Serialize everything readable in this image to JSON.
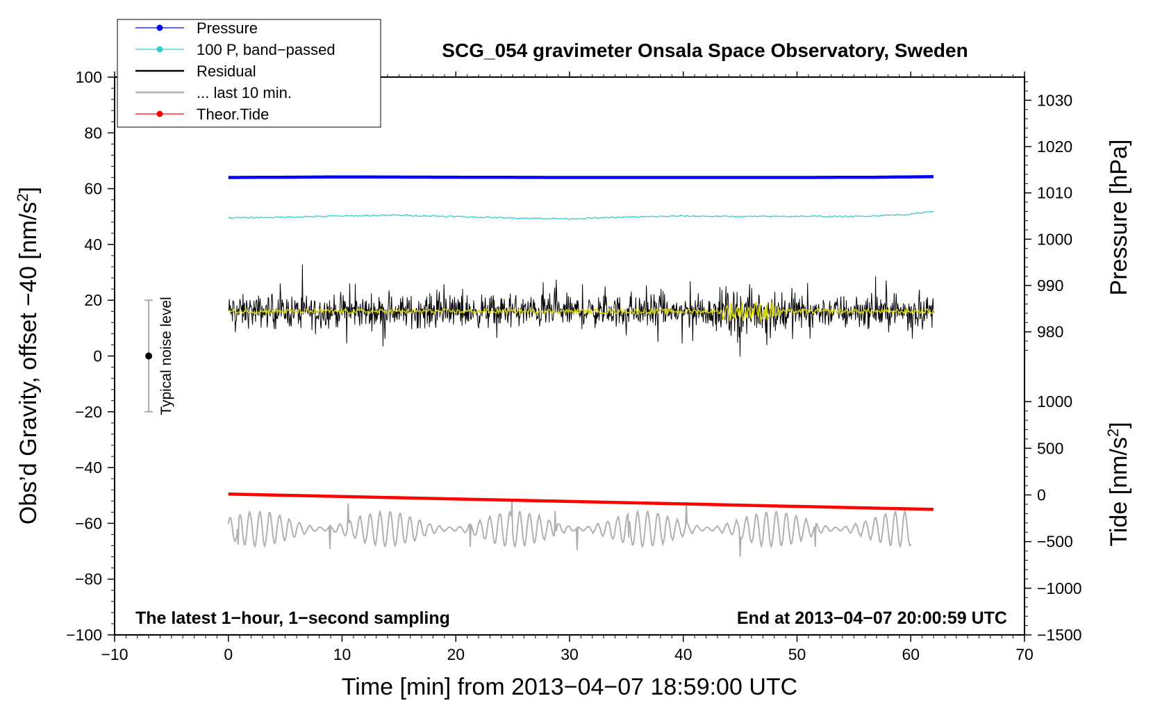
{
  "chart_data": {
    "type": "line",
    "title": "SCG_054 gravimeter Onsala Space Observatory, Sweden",
    "xlabel": "Time [min] from 2013−04−07 18:59:00 UTC",
    "ylabel_left_prefix": "Obs’d Gravity, offset −40 [nm/s",
    "ylabel_left_sup": "2",
    "ylabel_left_suffix": "]",
    "ylabel_pressure": "Pressure [hPa]",
    "ylabel_tide_prefix": "Tide [nm/s",
    "ylabel_tide_sup": "2",
    "ylabel_tide_suffix": "]",
    "xlim": [
      -10,
      70
    ],
    "ylim_left": [
      -100,
      100
    ],
    "ylim_pressure": [
      975,
      1035
    ],
    "ylim_tide": [
      -1500,
      1500
    ],
    "x_ticks": [
      -10,
      0,
      10,
      20,
      30,
      40,
      50,
      60,
      70
    ],
    "x_tick_labels": [
      "−10",
      "0",
      "10",
      "20",
      "30",
      "40",
      "50",
      "60",
      "70"
    ],
    "y_left_ticks": [
      100,
      80,
      60,
      40,
      20,
      0,
      -20,
      -40,
      -60,
      -80,
      -100
    ],
    "y_left_tick_labels": [
      "100",
      "80",
      "60",
      "40",
      "20",
      "0",
      "−20",
      "−40",
      "−60",
      "−80",
      "−100"
    ],
    "y_pressure_ticks": [
      1030,
      1020,
      1010,
      1000,
      990,
      980
    ],
    "y_pressure_tick_labels": [
      "1030",
      "1020",
      "1010",
      "1000",
      "990",
      "980"
    ],
    "y_tide_ticks": [
      1000,
      500,
      0,
      -500,
      -1000,
      -1500
    ],
    "y_tide_tick_labels": [
      "1000",
      "500",
      "0",
      "−500",
      "−1000",
      "−1500"
    ],
    "legend": {
      "placement": "top-left",
      "entries": [
        {
          "label": "Pressure",
          "color": "#0000ff",
          "marker": true
        },
        {
          "label": "100 P, band−passed",
          "color": "#33cccc",
          "marker": true
        },
        {
          "label": "Residual",
          "color": "#000000",
          "marker": false
        },
        {
          "label": "... last 10 min.",
          "color": "#b0b0b0",
          "marker": false
        },
        {
          "label": "Theor.Tide",
          "color": "#ff0000",
          "marker": true
        }
      ]
    },
    "series": [
      {
        "name": "Pressure",
        "color": "#0000ff",
        "axis": "left",
        "x": [
          0,
          10,
          20,
          30,
          40,
          50,
          57,
          62
        ],
        "y": [
          64,
          64.2,
          64.1,
          64,
          64,
          64,
          64.1,
          64.3
        ]
      },
      {
        "name": "100 P, band−passed",
        "color": "#33cccc",
        "axis": "left",
        "x": [
          0,
          5,
          10,
          15,
          20,
          25,
          30,
          35,
          40,
          45,
          50,
          55,
          60,
          62
        ],
        "y": [
          49.5,
          49.8,
          50.2,
          50.5,
          50,
          49.5,
          49.2,
          49.8,
          50.2,
          50,
          50.1,
          50,
          50.8,
          52
        ]
      },
      {
        "name": "Residual",
        "color": "#000000",
        "axis": "left",
        "x": [
          0,
          62
        ],
        "y": [
          16,
          16
        ],
        "noise_amplitude": 7
      },
      {
        "name": "... last 10 min.",
        "color": "#b0b0b0",
        "axis": "left",
        "x": [
          0,
          60
        ],
        "y": [
          -62,
          -62
        ],
        "noise_amplitude": 6
      },
      {
        "name": "Theor.Tide",
        "color": "#ff0000",
        "axis": "left",
        "x": [
          0,
          62
        ],
        "y": [
          -49.5,
          -55
        ]
      }
    ],
    "noise_bar": {
      "label": "Typical noise level",
      "x": -7,
      "center": 0,
      "low": -20,
      "high": 20
    },
    "annotations": {
      "left": "The latest 1−hour, 1−second sampling",
      "right": "End at 2013−04−07 20:00:59 UTC"
    },
    "grid": false,
    "colors": {
      "residual_smooth": "#d4d400",
      "noise_bar": "#aaaaaa"
    }
  }
}
